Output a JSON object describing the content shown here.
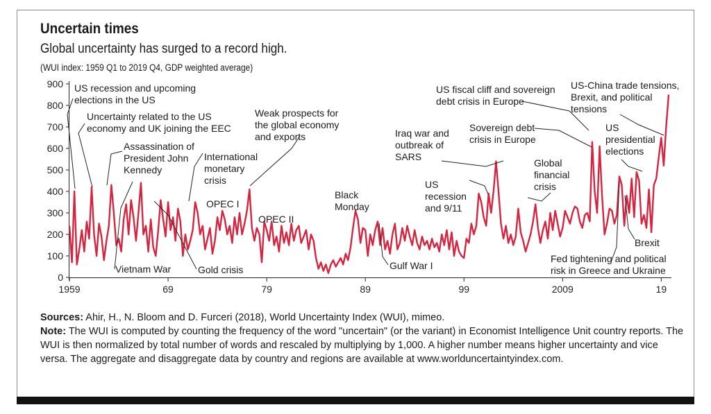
{
  "header": {
    "title": "Uncertain times",
    "subtitle": "Global uncertainty has surged to a record high.",
    "axis_note": "(WUI index: 1959 Q1 to 2019 Q4, GDP weighted average)"
  },
  "footer": {
    "sources_label": "Sources:",
    "sources_text": " Ahir, H., N. Bloom and D. Furceri (2018), World Uncertainty Index (WUI), mimeo.",
    "note_label": "Note:",
    "note_text": " The WUI is computed by counting the frequency of the word \"uncertain\" (or the variant) in Economist Intelligence Unit country reports. The WUI is then normalized by total number of words and rescaled by multiplying by 1,000. A higher number means higher uncertainty and vice versa. The aggregate and disaggregate data by country and regions are available at www.worlduncertaintyindex.com."
  },
  "chart_data": {
    "type": "line",
    "title": "Uncertain times",
    "ylim": [
      0,
      900
    ],
    "yticks": [
      0,
      100,
      200,
      300,
      400,
      500,
      600,
      700,
      800,
      900
    ],
    "xlim": [
      1959,
      2019.75
    ],
    "xticks": [
      {
        "value": 1959,
        "label": "1959"
      },
      {
        "value": 1969,
        "label": "69"
      },
      {
        "value": 1979,
        "label": "79"
      },
      {
        "value": 1989,
        "label": "89"
      },
      {
        "value": 1999,
        "label": "99"
      },
      {
        "value": 2009,
        "label": "2009"
      },
      {
        "value": 2019,
        "label": "19"
      }
    ],
    "color": "#d6243f",
    "series": [
      {
        "points": [
          [
            1959.0,
            240
          ],
          [
            1959.25,
            70
          ],
          [
            1959.5,
            400
          ],
          [
            1959.75,
            60
          ],
          [
            1960.0,
            130
          ],
          [
            1960.25,
            220
          ],
          [
            1960.5,
            120
          ],
          [
            1960.75,
            260
          ],
          [
            1961.0,
            180
          ],
          [
            1961.25,
            420
          ],
          [
            1961.5,
            200
          ],
          [
            1961.75,
            100
          ],
          [
            1962.0,
            250
          ],
          [
            1962.25,
            190
          ],
          [
            1962.5,
            80
          ],
          [
            1962.75,
            170
          ],
          [
            1963.0,
            240
          ],
          [
            1963.25,
            430
          ],
          [
            1963.5,
            300
          ],
          [
            1963.75,
            150
          ],
          [
            1964.0,
            180
          ],
          [
            1964.25,
            120
          ],
          [
            1964.5,
            270
          ],
          [
            1964.75,
            340
          ],
          [
            1965.0,
            200
          ],
          [
            1965.25,
            360
          ],
          [
            1965.5,
            280
          ],
          [
            1965.75,
            170
          ],
          [
            1966.0,
            300
          ],
          [
            1966.25,
            440
          ],
          [
            1966.5,
            200
          ],
          [
            1966.75,
            240
          ],
          [
            1967.0,
            120
          ],
          [
            1967.25,
            270
          ],
          [
            1967.5,
            140
          ],
          [
            1967.75,
            100
          ],
          [
            1968.0,
            220
          ],
          [
            1968.25,
            360
          ],
          [
            1968.5,
            270
          ],
          [
            1968.75,
            190
          ],
          [
            1969.0,
            350
          ],
          [
            1969.25,
            220
          ],
          [
            1969.5,
            280
          ],
          [
            1969.75,
            170
          ],
          [
            1970.0,
            320
          ],
          [
            1970.25,
            260
          ],
          [
            1970.5,
            100
          ],
          [
            1970.75,
            200
          ],
          [
            1971.0,
            130
          ],
          [
            1971.25,
            170
          ],
          [
            1971.5,
            220
          ],
          [
            1971.75,
            350
          ],
          [
            1972.0,
            300
          ],
          [
            1972.25,
            200
          ],
          [
            1972.5,
            240
          ],
          [
            1972.75,
            130
          ],
          [
            1973.0,
            180
          ],
          [
            1973.25,
            230
          ],
          [
            1973.5,
            110
          ],
          [
            1973.75,
            170
          ],
          [
            1974.0,
            280
          ],
          [
            1974.25,
            220
          ],
          [
            1974.5,
            310
          ],
          [
            1974.75,
            270
          ],
          [
            1975.0,
            200
          ],
          [
            1975.25,
            240
          ],
          [
            1975.5,
            160
          ],
          [
            1975.75,
            280
          ],
          [
            1976.0,
            200
          ],
          [
            1976.25,
            300
          ],
          [
            1976.5,
            200
          ],
          [
            1976.75,
            250
          ],
          [
            1977.0,
            310
          ],
          [
            1977.25,
            410
          ],
          [
            1977.5,
            230
          ],
          [
            1977.75,
            170
          ],
          [
            1978.0,
            230
          ],
          [
            1978.25,
            200
          ],
          [
            1978.5,
            70
          ],
          [
            1978.75,
            260
          ],
          [
            1979.0,
            220
          ],
          [
            1979.25,
            170
          ],
          [
            1979.5,
            260
          ],
          [
            1979.75,
            150
          ],
          [
            1980.0,
            190
          ],
          [
            1980.25,
            120
          ],
          [
            1980.5,
            240
          ],
          [
            1980.75,
            160
          ],
          [
            1981.0,
            210
          ],
          [
            1981.25,
            150
          ],
          [
            1981.5,
            250
          ],
          [
            1981.75,
            170
          ],
          [
            1982.0,
            220
          ],
          [
            1982.25,
            240
          ],
          [
            1982.5,
            160
          ],
          [
            1982.75,
            190
          ],
          [
            1983.0,
            220
          ],
          [
            1983.25,
            130
          ],
          [
            1983.5,
            200
          ],
          [
            1983.75,
            170
          ],
          [
            1984.0,
            90
          ],
          [
            1984.25,
            40
          ],
          [
            1984.5,
            70
          ],
          [
            1984.75,
            30
          ],
          [
            1985.0,
            60
          ],
          [
            1985.25,
            20
          ],
          [
            1985.5,
            60
          ],
          [
            1985.75,
            80
          ],
          [
            1986.0,
            50
          ],
          [
            1986.25,
            70
          ],
          [
            1986.5,
            90
          ],
          [
            1986.75,
            60
          ],
          [
            1987.0,
            110
          ],
          [
            1987.25,
            80
          ],
          [
            1987.5,
            140
          ],
          [
            1987.75,
            230
          ],
          [
            1988.0,
            310
          ],
          [
            1988.25,
            270
          ],
          [
            1988.5,
            160
          ],
          [
            1988.75,
            230
          ],
          [
            1989.0,
            220
          ],
          [
            1989.25,
            100
          ],
          [
            1989.5,
            200
          ],
          [
            1989.75,
            150
          ],
          [
            1990.0,
            220
          ],
          [
            1990.25,
            260
          ],
          [
            1990.5,
            150
          ],
          [
            1990.75,
            230
          ],
          [
            1991.0,
            130
          ],
          [
            1991.25,
            170
          ],
          [
            1991.5,
            110
          ],
          [
            1991.75,
            200
          ],
          [
            1992.0,
            250
          ],
          [
            1992.25,
            130
          ],
          [
            1992.5,
            160
          ],
          [
            1992.75,
            230
          ],
          [
            1993.0,
            170
          ],
          [
            1993.25,
            240
          ],
          [
            1993.5,
            190
          ],
          [
            1993.75,
            150
          ],
          [
            1994.0,
            220
          ],
          [
            1994.25,
            160
          ],
          [
            1994.5,
            130
          ],
          [
            1994.75,
            190
          ],
          [
            1995.0,
            150
          ],
          [
            1995.25,
            170
          ],
          [
            1995.5,
            130
          ],
          [
            1995.75,
            180
          ],
          [
            1996.0,
            140
          ],
          [
            1996.25,
            160
          ],
          [
            1996.5,
            120
          ],
          [
            1996.75,
            200
          ],
          [
            1997.0,
            150
          ],
          [
            1997.25,
            220
          ],
          [
            1997.5,
            130
          ],
          [
            1997.75,
            210
          ],
          [
            1998.0,
            100
          ],
          [
            1998.25,
            170
          ],
          [
            1998.5,
            120
          ],
          [
            1998.75,
            100
          ],
          [
            1999.0,
            90
          ],
          [
            1999.25,
            180
          ],
          [
            1999.5,
            160
          ],
          [
            1999.75,
            250
          ],
          [
            2000.0,
            200
          ],
          [
            2000.25,
            240
          ],
          [
            2000.5,
            390
          ],
          [
            2000.75,
            350
          ],
          [
            2001.0,
            280
          ],
          [
            2001.25,
            240
          ],
          [
            2001.5,
            390
          ],
          [
            2001.75,
            300
          ],
          [
            2002.0,
            400
          ],
          [
            2002.25,
            540
          ],
          [
            2002.5,
            400
          ],
          [
            2002.75,
            250
          ],
          [
            2003.0,
            180
          ],
          [
            2003.25,
            240
          ],
          [
            2003.5,
            160
          ],
          [
            2003.75,
            200
          ],
          [
            2004.0,
            150
          ],
          [
            2004.25,
            190
          ],
          [
            2004.5,
            320
          ],
          [
            2004.75,
            210
          ],
          [
            2005.0,
            170
          ],
          [
            2005.25,
            120
          ],
          [
            2005.5,
            160
          ],
          [
            2005.75,
            200
          ],
          [
            2006.0,
            260
          ],
          [
            2006.25,
            340
          ],
          [
            2006.5,
            230
          ],
          [
            2006.75,
            160
          ],
          [
            2007.0,
            220
          ],
          [
            2007.25,
            260
          ],
          [
            2007.5,
            180
          ],
          [
            2007.75,
            300
          ],
          [
            2008.0,
            220
          ],
          [
            2008.25,
            310
          ],
          [
            2008.5,
            250
          ],
          [
            2008.75,
            190
          ],
          [
            2009.0,
            230
          ],
          [
            2009.25,
            310
          ],
          [
            2009.5,
            280
          ],
          [
            2009.75,
            250
          ],
          [
            2010.0,
            300
          ],
          [
            2010.25,
            330
          ],
          [
            2010.5,
            320
          ],
          [
            2010.75,
            260
          ],
          [
            2011.0,
            230
          ],
          [
            2011.25,
            290
          ],
          [
            2011.5,
            300
          ],
          [
            2011.75,
            260
          ],
          [
            2012.0,
            630
          ],
          [
            2012.25,
            400
          ],
          [
            2012.5,
            300
          ],
          [
            2012.75,
            610
          ],
          [
            2013.0,
            380
          ],
          [
            2013.25,
            200
          ],
          [
            2013.5,
            250
          ],
          [
            2013.75,
            320
          ],
          [
            2014.0,
            310
          ],
          [
            2014.25,
            250
          ],
          [
            2014.5,
            290
          ],
          [
            2014.75,
            470
          ],
          [
            2015.0,
            430
          ],
          [
            2015.25,
            240
          ],
          [
            2015.5,
            380
          ],
          [
            2015.75,
            300
          ],
          [
            2016.0,
            460
          ],
          [
            2016.25,
            280
          ],
          [
            2016.5,
            490
          ],
          [
            2016.75,
            450
          ],
          [
            2017.0,
            250
          ],
          [
            2017.25,
            290
          ],
          [
            2017.5,
            230
          ],
          [
            2017.75,
            410
          ],
          [
            2018.0,
            210
          ],
          [
            2018.25,
            430
          ],
          [
            2018.5,
            460
          ],
          [
            2018.75,
            560
          ],
          [
            2019.0,
            650
          ],
          [
            2019.25,
            520
          ],
          [
            2019.5,
            700
          ],
          [
            2019.75,
            850
          ]
        ]
      }
    ],
    "annotations": [
      {
        "id": "us-recession-1960",
        "lines": [
          "US recession and upcoming",
          "elections in the US"
        ]
      },
      {
        "id": "us-economy-uk-eec",
        "lines": [
          "Uncertainty related to the US",
          "economy and UK joining the EEC"
        ]
      },
      {
        "id": "jfk-assassination",
        "lines": [
          "Assassination of",
          "President John",
          "Kennedy"
        ]
      },
      {
        "id": "vietnam-war",
        "lines": [
          "Vietnam War"
        ]
      },
      {
        "id": "gold-crisis",
        "lines": [
          "Gold crisis"
        ]
      },
      {
        "id": "intl-monetary-crisis",
        "lines": [
          "International",
          "monetary",
          "crisis"
        ]
      },
      {
        "id": "opec-1",
        "lines": [
          "OPEC I"
        ]
      },
      {
        "id": "opec-2",
        "lines": [
          "OPEC II"
        ]
      },
      {
        "id": "weak-prospects",
        "lines": [
          "Weak prospects for",
          "the global economy",
          "and exports"
        ]
      },
      {
        "id": "black-monday",
        "lines": [
          "Black",
          "Monday"
        ]
      },
      {
        "id": "gulf-war",
        "lines": [
          "Gulf War I"
        ]
      },
      {
        "id": "us-recession-911",
        "lines": [
          "US",
          "recession",
          "and 9/11"
        ]
      },
      {
        "id": "iraq-sars",
        "lines": [
          "Iraq war and",
          "outbreak of",
          "SARS"
        ]
      },
      {
        "id": "us-fiscal-cliff",
        "lines": [
          "US fiscal cliff and sovereign",
          "debt crisis in Europe"
        ]
      },
      {
        "id": "sovereign-debt",
        "lines": [
          "Sovereign debt",
          "crisis in Europe"
        ]
      },
      {
        "id": "global-financial-crisis",
        "lines": [
          "Global",
          "financial",
          "crisis"
        ]
      },
      {
        "id": "fed-tightening",
        "lines": [
          "Fed tightening and political",
          "risk in Greece and Ukraine"
        ]
      },
      {
        "id": "us-china-trade",
        "lines": [
          "US-China trade tensions,",
          "Brexit, and political",
          "tensions"
        ]
      },
      {
        "id": "us-elections",
        "lines": [
          "US",
          "presidential",
          "elections"
        ]
      },
      {
        "id": "brexit",
        "lines": [
          "Brexit"
        ]
      }
    ]
  }
}
